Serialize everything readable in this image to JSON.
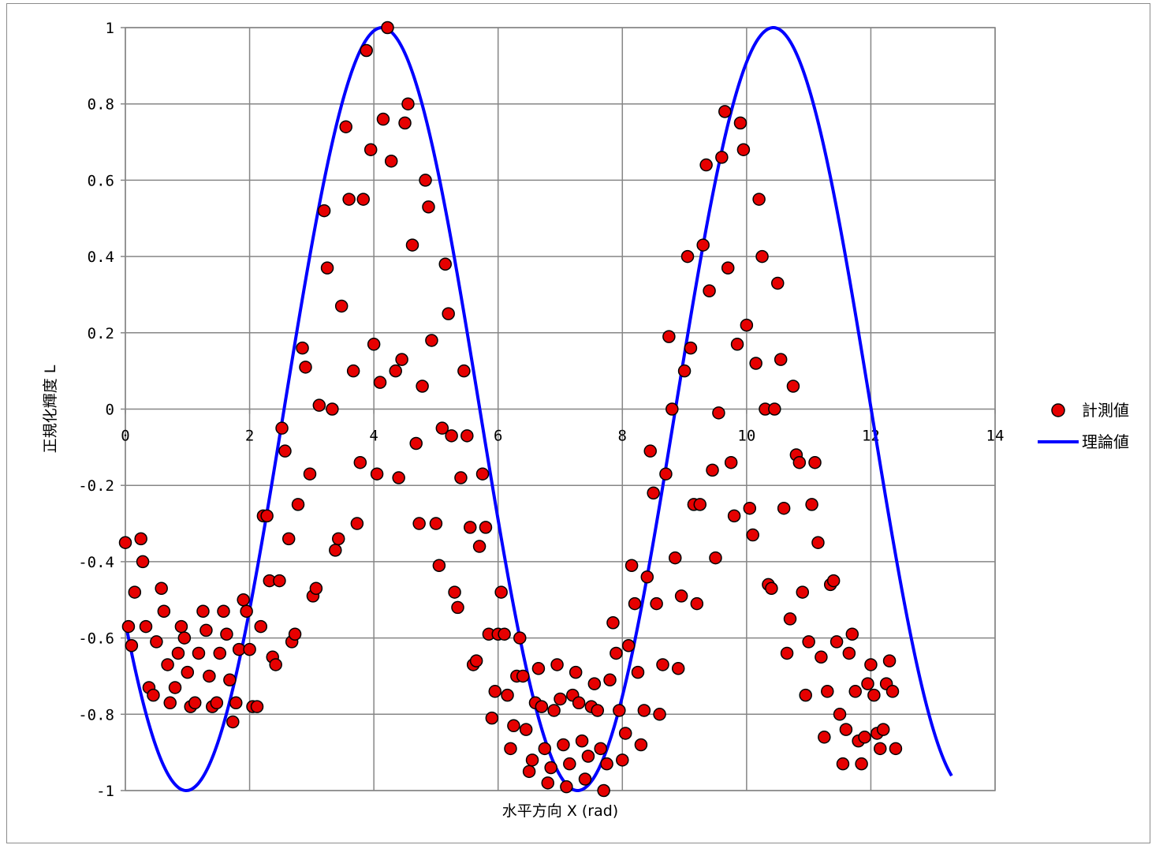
{
  "chart_data": {
    "type": "scatter",
    "title": "",
    "xlabel": "水平方向 X (rad)",
    "ylabel": "正規化輝度 L",
    "xlim": [
      0,
      14
    ],
    "ylim": [
      -1,
      1
    ],
    "x_ticks": [
      "0",
      "2",
      "4",
      "6",
      "8",
      "10",
      "12",
      "14"
    ],
    "y_ticks": [
      "-1",
      "-0.8",
      "-0.6",
      "-0.4",
      "-0.2",
      "0",
      "0.2",
      "0.4",
      "0.6",
      "0.8",
      "1"
    ],
    "grid": true,
    "legend_position": "right",
    "legend": [
      "計測値",
      "理論値"
    ],
    "series": [
      {
        "name": "計測値",
        "kind": "scatter",
        "marker_fill": "#e60000",
        "marker_edge": "#000000",
        "points": [
          [
            0.0,
            -0.35
          ],
          [
            0.05,
            -0.57
          ],
          [
            0.1,
            -0.62
          ],
          [
            0.15,
            -0.48
          ],
          [
            0.25,
            -0.34
          ],
          [
            0.28,
            -0.4
          ],
          [
            0.33,
            -0.57
          ],
          [
            0.38,
            -0.73
          ],
          [
            0.45,
            -0.75
          ],
          [
            0.5,
            -0.61
          ],
          [
            0.58,
            -0.47
          ],
          [
            0.62,
            -0.53
          ],
          [
            0.68,
            -0.67
          ],
          [
            0.72,
            -0.77
          ],
          [
            0.8,
            -0.73
          ],
          [
            0.85,
            -0.64
          ],
          [
            0.9,
            -0.57
          ],
          [
            0.95,
            -0.6
          ],
          [
            1.0,
            -0.69
          ],
          [
            1.05,
            -0.78
          ],
          [
            1.12,
            -0.77
          ],
          [
            1.18,
            -0.64
          ],
          [
            1.25,
            -0.53
          ],
          [
            1.3,
            -0.58
          ],
          [
            1.35,
            -0.7
          ],
          [
            1.4,
            -0.78
          ],
          [
            1.47,
            -0.77
          ],
          [
            1.52,
            -0.64
          ],
          [
            1.58,
            -0.53
          ],
          [
            1.63,
            -0.59
          ],
          [
            1.68,
            -0.71
          ],
          [
            1.73,
            -0.82
          ],
          [
            1.78,
            -0.77
          ],
          [
            1.83,
            -0.63
          ],
          [
            1.9,
            -0.5
          ],
          [
            1.95,
            -0.53
          ],
          [
            2.0,
            -0.63
          ],
          [
            2.05,
            -0.78
          ],
          [
            2.12,
            -0.78
          ],
          [
            2.18,
            -0.57
          ],
          [
            2.22,
            -0.28
          ],
          [
            2.28,
            -0.28
          ],
          [
            2.32,
            -0.45
          ],
          [
            2.37,
            -0.65
          ],
          [
            2.42,
            -0.67
          ],
          [
            2.48,
            -0.45
          ],
          [
            2.52,
            -0.05
          ],
          [
            2.57,
            -0.11
          ],
          [
            2.63,
            -0.34
          ],
          [
            2.68,
            -0.61
          ],
          [
            2.73,
            -0.59
          ],
          [
            2.78,
            -0.25
          ],
          [
            2.85,
            0.16
          ],
          [
            2.9,
            0.11
          ],
          [
            2.97,
            -0.17
          ],
          [
            3.02,
            -0.49
          ],
          [
            3.07,
            -0.47
          ],
          [
            3.12,
            0.01
          ],
          [
            3.2,
            0.52
          ],
          [
            3.25,
            0.37
          ],
          [
            3.33,
            0.0
          ],
          [
            3.38,
            -0.37
          ],
          [
            3.43,
            -0.34
          ],
          [
            3.48,
            0.27
          ],
          [
            3.55,
            0.74
          ],
          [
            3.6,
            0.55
          ],
          [
            3.67,
            0.1
          ],
          [
            3.73,
            -0.3
          ],
          [
            3.78,
            -0.14
          ],
          [
            3.83,
            0.55
          ],
          [
            3.88,
            0.94
          ],
          [
            3.95,
            0.68
          ],
          [
            4.0,
            0.17
          ],
          [
            4.05,
            -0.17
          ],
          [
            4.1,
            0.07
          ],
          [
            4.15,
            0.76
          ],
          [
            4.22,
            1.0
          ],
          [
            4.28,
            0.65
          ],
          [
            4.35,
            0.1
          ],
          [
            4.4,
            -0.18
          ],
          [
            4.45,
            0.13
          ],
          [
            4.5,
            0.75
          ],
          [
            4.55,
            0.8
          ],
          [
            4.62,
            0.43
          ],
          [
            4.68,
            -0.09
          ],
          [
            4.73,
            -0.3
          ],
          [
            4.78,
            0.06
          ],
          [
            4.83,
            0.6
          ],
          [
            4.88,
            0.53
          ],
          [
            4.93,
            0.18
          ],
          [
            5.0,
            -0.3
          ],
          [
            5.05,
            -0.41
          ],
          [
            5.1,
            -0.05
          ],
          [
            5.15,
            0.38
          ],
          [
            5.2,
            0.25
          ],
          [
            5.25,
            -0.07
          ],
          [
            5.3,
            -0.48
          ],
          [
            5.35,
            -0.52
          ],
          [
            5.4,
            -0.18
          ],
          [
            5.45,
            0.1
          ],
          [
            5.5,
            -0.07
          ],
          [
            5.55,
            -0.31
          ],
          [
            5.6,
            -0.67
          ],
          [
            5.65,
            -0.66
          ],
          [
            5.7,
            -0.36
          ],
          [
            5.75,
            -0.17
          ],
          [
            5.8,
            -0.31
          ],
          [
            5.85,
            -0.59
          ],
          [
            5.9,
            -0.81
          ],
          [
            5.95,
            -0.74
          ],
          [
            6.0,
            -0.59
          ],
          [
            6.05,
            -0.48
          ],
          [
            6.1,
            -0.59
          ],
          [
            6.15,
            -0.75
          ],
          [
            6.2,
            -0.89
          ],
          [
            6.25,
            -0.83
          ],
          [
            6.3,
            -0.7
          ],
          [
            6.35,
            -0.6
          ],
          [
            6.4,
            -0.7
          ],
          [
            6.45,
            -0.84
          ],
          [
            6.5,
            -0.95
          ],
          [
            6.55,
            -0.92
          ],
          [
            6.6,
            -0.77
          ],
          [
            6.65,
            -0.68
          ],
          [
            6.7,
            -0.78
          ],
          [
            6.75,
            -0.89
          ],
          [
            6.8,
            -0.98
          ],
          [
            6.85,
            -0.94
          ],
          [
            6.9,
            -0.79
          ],
          [
            6.95,
            -0.67
          ],
          [
            7.0,
            -0.76
          ],
          [
            7.05,
            -0.88
          ],
          [
            7.1,
            -0.99
          ],
          [
            7.15,
            -0.93
          ],
          [
            7.2,
            -0.75
          ],
          [
            7.25,
            -0.69
          ],
          [
            7.3,
            -0.77
          ],
          [
            7.35,
            -0.87
          ],
          [
            7.4,
            -0.97
          ],
          [
            7.45,
            -0.91
          ],
          [
            7.5,
            -0.78
          ],
          [
            7.55,
            -0.72
          ],
          [
            7.6,
            -0.79
          ],
          [
            7.65,
            -0.89
          ],
          [
            7.7,
            -1.0
          ],
          [
            7.75,
            -0.93
          ],
          [
            7.8,
            -0.71
          ],
          [
            7.85,
            -0.56
          ],
          [
            7.9,
            -0.64
          ],
          [
            7.95,
            -0.79
          ],
          [
            8.0,
            -0.92
          ],
          [
            8.05,
            -0.85
          ],
          [
            8.1,
            -0.62
          ],
          [
            8.15,
            -0.41
          ],
          [
            8.2,
            -0.51
          ],
          [
            8.25,
            -0.69
          ],
          [
            8.3,
            -0.88
          ],
          [
            8.35,
            -0.79
          ],
          [
            8.4,
            -0.44
          ],
          [
            8.45,
            -0.11
          ],
          [
            8.5,
            -0.22
          ],
          [
            8.55,
            -0.51
          ],
          [
            8.6,
            -0.8
          ],
          [
            8.65,
            -0.67
          ],
          [
            8.7,
            -0.17
          ],
          [
            8.75,
            0.19
          ],
          [
            8.8,
            0.0
          ],
          [
            8.85,
            -0.39
          ],
          [
            8.9,
            -0.68
          ],
          [
            8.95,
            -0.49
          ],
          [
            9.0,
            0.1
          ],
          [
            9.05,
            0.4
          ],
          [
            9.1,
            0.16
          ],
          [
            9.15,
            -0.25
          ],
          [
            9.2,
            -0.51
          ],
          [
            9.25,
            -0.25
          ],
          [
            9.3,
            0.43
          ],
          [
            9.35,
            0.64
          ],
          [
            9.4,
            0.31
          ],
          [
            9.45,
            -0.16
          ],
          [
            9.5,
            -0.39
          ],
          [
            9.55,
            -0.01
          ],
          [
            9.6,
            0.66
          ],
          [
            9.65,
            0.78
          ],
          [
            9.7,
            0.37
          ],
          [
            9.75,
            -0.14
          ],
          [
            9.8,
            -0.28
          ],
          [
            9.85,
            0.17
          ],
          [
            9.9,
            0.75
          ],
          [
            9.95,
            0.68
          ],
          [
            10.0,
            0.22
          ],
          [
            10.05,
            -0.26
          ],
          [
            10.1,
            -0.33
          ],
          [
            10.15,
            0.12
          ],
          [
            10.2,
            0.55
          ],
          [
            10.25,
            0.4
          ],
          [
            10.3,
            0.0
          ],
          [
            10.35,
            -0.46
          ],
          [
            10.4,
            -0.47
          ],
          [
            10.45,
            0.0
          ],
          [
            10.5,
            0.33
          ],
          [
            10.55,
            0.13
          ],
          [
            10.6,
            -0.26
          ],
          [
            10.65,
            -0.64
          ],
          [
            10.7,
            -0.55
          ],
          [
            10.75,
            0.06
          ],
          [
            10.8,
            -0.12
          ],
          [
            10.85,
            -0.14
          ],
          [
            10.9,
            -0.48
          ],
          [
            10.95,
            -0.75
          ],
          [
            11.0,
            -0.61
          ],
          [
            11.05,
            -0.25
          ],
          [
            11.1,
            -0.14
          ],
          [
            11.15,
            -0.35
          ],
          [
            11.2,
            -0.65
          ],
          [
            11.25,
            -0.86
          ],
          [
            11.3,
            -0.74
          ],
          [
            11.35,
            -0.46
          ],
          [
            11.4,
            -0.45
          ],
          [
            11.45,
            -0.61
          ],
          [
            11.5,
            -0.8
          ],
          [
            11.55,
            -0.93
          ],
          [
            11.6,
            -0.84
          ],
          [
            11.65,
            -0.64
          ],
          [
            11.7,
            -0.59
          ],
          [
            11.75,
            -0.74
          ],
          [
            11.8,
            -0.87
          ],
          [
            11.85,
            -0.93
          ],
          [
            11.9,
            -0.86
          ],
          [
            11.95,
            -0.72
          ],
          [
            12.0,
            -0.67
          ],
          [
            12.05,
            -0.75
          ],
          [
            12.1,
            -0.85
          ],
          [
            12.15,
            -0.89
          ],
          [
            12.2,
            -0.84
          ],
          [
            12.25,
            -0.72
          ],
          [
            12.3,
            -0.66
          ],
          [
            12.35,
            -0.74
          ],
          [
            12.4,
            -0.89
          ]
        ]
      },
      {
        "name": "理論値",
        "kind": "line",
        "color": "#0000ff",
        "description_formula": "y = sin(x - 0.57 - pi/2 ... )",
        "x_start": 0,
        "x_end": 13.3,
        "amplitude": 1,
        "period": 6.3,
        "phase_min_x": 0.98
      }
    ]
  }
}
